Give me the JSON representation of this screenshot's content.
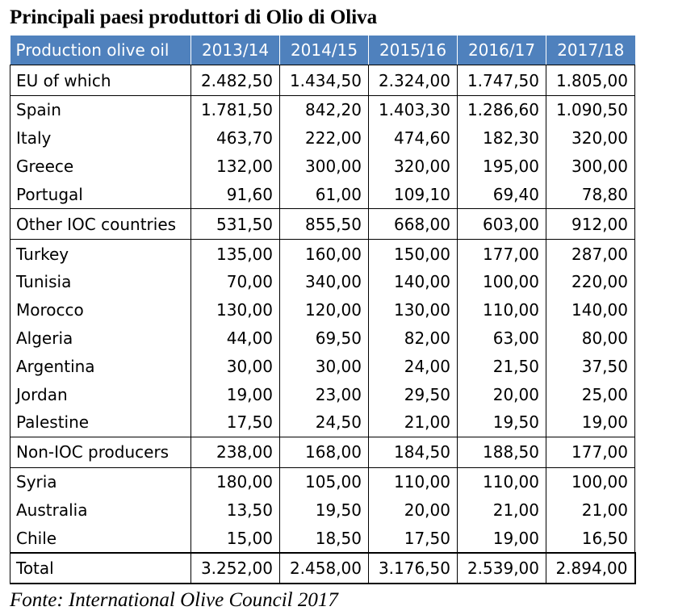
{
  "title": "Principali paesi produttori di Olio di Oliva",
  "table": {
    "headers": [
      "Production olive oil",
      "2013/14",
      "2014/15",
      "2015/16",
      "2016/17",
      "2017/18"
    ],
    "rows": [
      {
        "label": "EU of which",
        "values": [
          "2.482,50",
          "1.434,50",
          "2.324,00",
          "1.747,50",
          "1.805,00"
        ]
      },
      {
        "label": "Spain",
        "values": [
          "1.781,50",
          "842,20",
          "1.403,30",
          "1.286,60",
          "1.090,50"
        ]
      },
      {
        "label": "Italy",
        "values": [
          "463,70",
          "222,00",
          "474,60",
          "182,30",
          "320,00"
        ]
      },
      {
        "label": "Greece",
        "values": [
          "132,00",
          "300,00",
          "320,00",
          "195,00",
          "300,00"
        ]
      },
      {
        "label": "Portugal",
        "values": [
          "91,60",
          "61,00",
          "109,10",
          "69,40",
          "78,80"
        ]
      },
      {
        "label": "Other IOC countries",
        "values": [
          "531,50",
          "855,50",
          "668,00",
          "603,00",
          "912,00"
        ]
      },
      {
        "label": "Turkey",
        "values": [
          "135,00",
          "160,00",
          "150,00",
          "177,00",
          "287,00"
        ]
      },
      {
        "label": "Tunisia",
        "values": [
          "70,00",
          "340,00",
          "140,00",
          "100,00",
          "220,00"
        ]
      },
      {
        "label": "Morocco",
        "values": [
          "130,00",
          "120,00",
          "130,00",
          "110,00",
          "140,00"
        ]
      },
      {
        "label": "Algeria",
        "values": [
          "44,00",
          "69,50",
          "82,00",
          "63,00",
          "80,00"
        ]
      },
      {
        "label": "Argentina",
        "values": [
          "30,00",
          "30,00",
          "24,00",
          "21,50",
          "37,50"
        ]
      },
      {
        "label": "Jordan",
        "values": [
          "19,00",
          "23,00",
          "29,50",
          "20,00",
          "25,00"
        ]
      },
      {
        "label": "Palestine",
        "values": [
          "17,50",
          "24,50",
          "21,00",
          "19,50",
          "19,00"
        ]
      },
      {
        "label": "Non-IOC producers",
        "values": [
          "238,00",
          "168,00",
          "184,50",
          "188,50",
          "177,00"
        ]
      },
      {
        "label": "Syria",
        "values": [
          "180,00",
          "105,00",
          "110,00",
          "110,00",
          "100,00"
        ]
      },
      {
        "label": "Australia",
        "values": [
          "13,50",
          "19,50",
          "20,00",
          "21,00",
          "21,00"
        ]
      },
      {
        "label": "Chile",
        "values": [
          "15,00",
          "18,50",
          "17,50",
          "19,00",
          "16,50"
        ]
      },
      {
        "label": "Total",
        "values": [
          "3.252,00",
          "2.458,00",
          "3.176,50",
          "2.539,00",
          "2.894,00"
        ]
      }
    ]
  },
  "source": "Fonte: International Olive Council 2017",
  "colors": {
    "header_bg": "#4f81bd",
    "header_text": "#ffffff"
  }
}
